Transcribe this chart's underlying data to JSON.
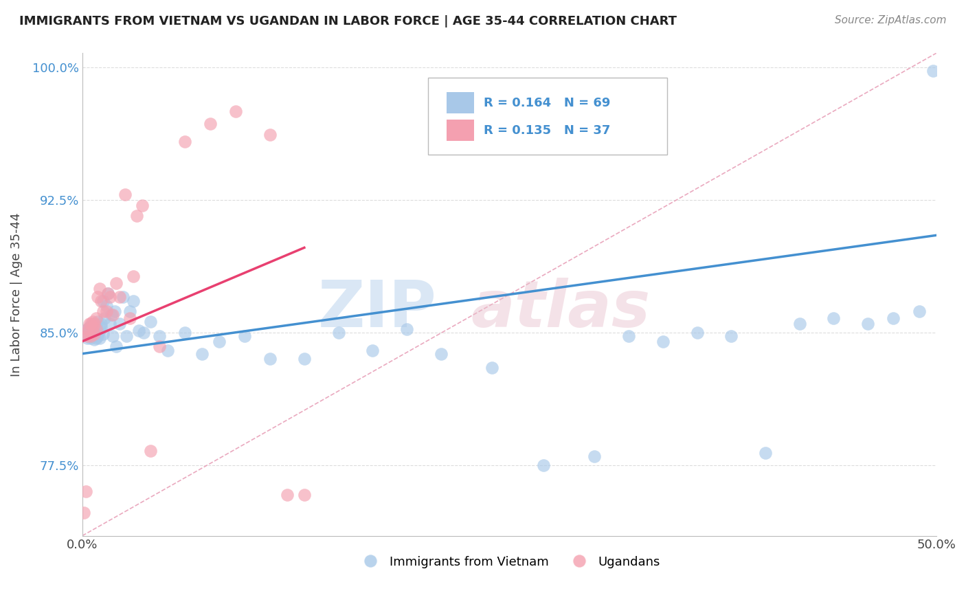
{
  "title": "IMMIGRANTS FROM VIETNAM VS UGANDAN IN LABOR FORCE | AGE 35-44 CORRELATION CHART",
  "source": "Source: ZipAtlas.com",
  "ylabel": "In Labor Force | Age 35-44",
  "xlim": [
    0.0,
    0.5
  ],
  "ylim": [
    0.735,
    1.008
  ],
  "xticks": [
    0.0,
    0.1,
    0.2,
    0.3,
    0.4,
    0.5
  ],
  "xticklabels": [
    "0.0%",
    "",
    "",
    "",
    "",
    "50.0%"
  ],
  "yticks": [
    0.775,
    0.85,
    0.925,
    1.0
  ],
  "yticklabels": [
    "77.5%",
    "85.0%",
    "92.5%",
    "100.0%"
  ],
  "legend_blue_label": "Immigrants from Vietnam",
  "legend_pink_label": "Ugandans",
  "R_blue": 0.164,
  "N_blue": 69,
  "R_pink": 0.135,
  "N_pink": 37,
  "blue_color": "#A8C8E8",
  "pink_color": "#F4A0B0",
  "blue_line_color": "#4490D0",
  "pink_line_color": "#E84070",
  "dashed_line_color": "#E8A0B8",
  "background_color": "#FFFFFF",
  "grid_color": "#DDDDDD",
  "blue_scatter_x": [
    0.001,
    0.002,
    0.002,
    0.003,
    0.003,
    0.004,
    0.004,
    0.004,
    0.005,
    0.005,
    0.005,
    0.006,
    0.006,
    0.007,
    0.007,
    0.007,
    0.008,
    0.008,
    0.008,
    0.009,
    0.009,
    0.01,
    0.01,
    0.011,
    0.011,
    0.012,
    0.012,
    0.013,
    0.014,
    0.015,
    0.016,
    0.017,
    0.018,
    0.019,
    0.02,
    0.022,
    0.024,
    0.026,
    0.028,
    0.03,
    0.033,
    0.036,
    0.04,
    0.045,
    0.05,
    0.06,
    0.07,
    0.08,
    0.095,
    0.11,
    0.13,
    0.15,
    0.17,
    0.19,
    0.21,
    0.24,
    0.27,
    0.3,
    0.32,
    0.34,
    0.36,
    0.38,
    0.4,
    0.42,
    0.44,
    0.46,
    0.475,
    0.49,
    0.498
  ],
  "blue_scatter_y": [
    0.85,
    0.851,
    0.849,
    0.852,
    0.847,
    0.853,
    0.848,
    0.851,
    0.854,
    0.849,
    0.847,
    0.852,
    0.848,
    0.855,
    0.849,
    0.846,
    0.853,
    0.85,
    0.847,
    0.856,
    0.848,
    0.851,
    0.847,
    0.853,
    0.855,
    0.868,
    0.849,
    0.858,
    0.865,
    0.872,
    0.855,
    0.86,
    0.848,
    0.862,
    0.842,
    0.855,
    0.87,
    0.848,
    0.862,
    0.868,
    0.851,
    0.85,
    0.856,
    0.848,
    0.84,
    0.85,
    0.838,
    0.845,
    0.848,
    0.835,
    0.835,
    0.85,
    0.84,
    0.852,
    0.838,
    0.83,
    0.775,
    0.78,
    0.848,
    0.845,
    0.85,
    0.848,
    0.782,
    0.855,
    0.858,
    0.855,
    0.858,
    0.862,
    0.998
  ],
  "pink_scatter_x": [
    0.001,
    0.002,
    0.002,
    0.003,
    0.003,
    0.004,
    0.005,
    0.005,
    0.006,
    0.006,
    0.007,
    0.007,
    0.008,
    0.008,
    0.009,
    0.01,
    0.011,
    0.012,
    0.014,
    0.015,
    0.016,
    0.018,
    0.02,
    0.022,
    0.025,
    0.028,
    0.03,
    0.032,
    0.035,
    0.04,
    0.045,
    0.06,
    0.075,
    0.09,
    0.11,
    0.12,
    0.13
  ],
  "pink_scatter_y": [
    0.748,
    0.85,
    0.76,
    0.848,
    0.852,
    0.855,
    0.855,
    0.848,
    0.853,
    0.856,
    0.855,
    0.849,
    0.852,
    0.858,
    0.87,
    0.875,
    0.868,
    0.862,
    0.862,
    0.872,
    0.87,
    0.86,
    0.878,
    0.87,
    0.928,
    0.858,
    0.882,
    0.916,
    0.922,
    0.783,
    0.842,
    0.958,
    0.968,
    0.975,
    0.962,
    0.758,
    0.758
  ],
  "blue_trend_x": [
    0.0,
    0.5
  ],
  "blue_trend_y": [
    0.838,
    0.905
  ],
  "pink_trend_x": [
    0.0,
    0.13
  ],
  "pink_trend_y": [
    0.845,
    0.898
  ],
  "diag_line_x": [
    0.0,
    0.5
  ],
  "diag_line_y": [
    0.735,
    1.008
  ]
}
